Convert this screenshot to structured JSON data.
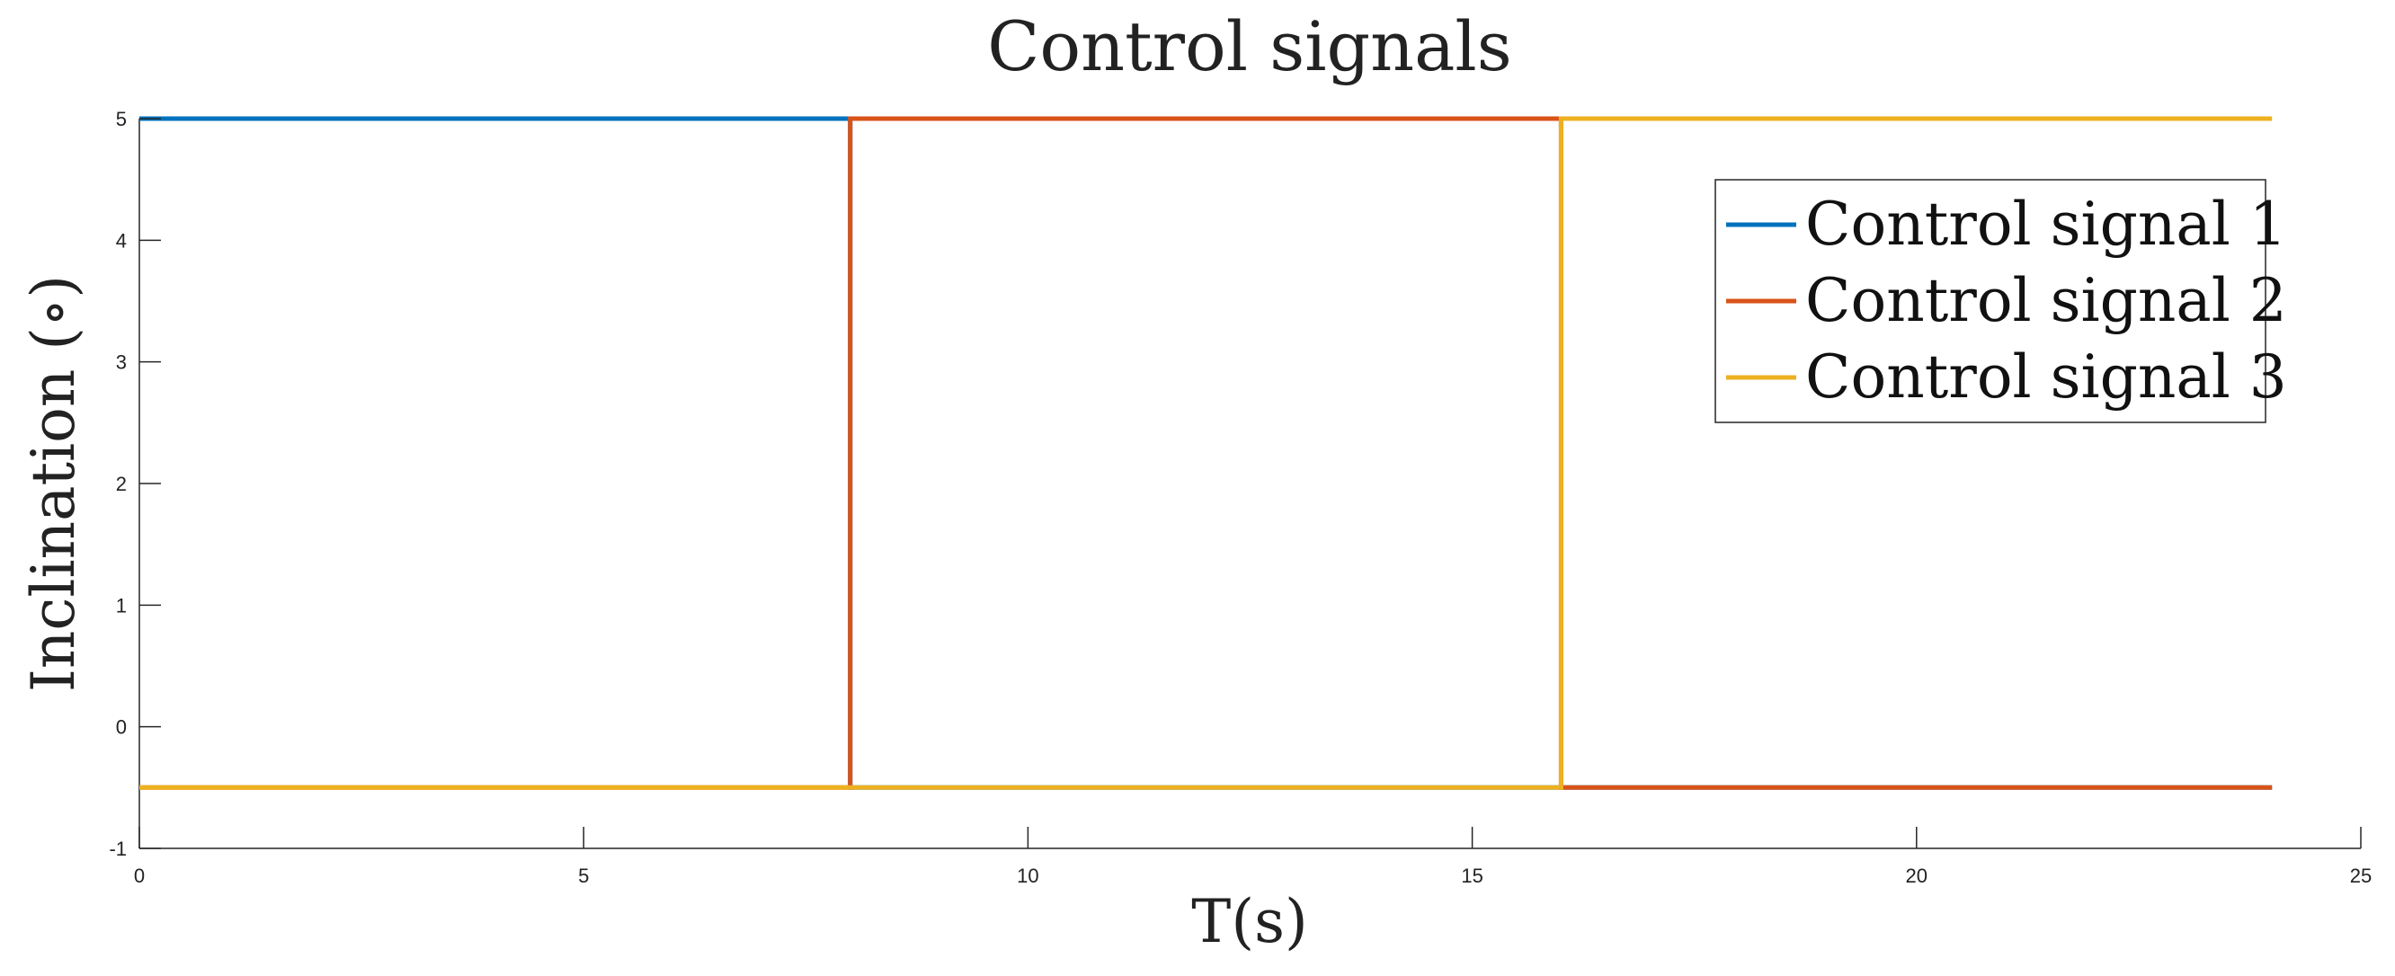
{
  "chart_data": {
    "type": "line",
    "title": "Control signals",
    "xlabel": "T(s)",
    "ylabel": "Inclination (∘)",
    "xlim": [
      0,
      25
    ],
    "ylim": [
      -1,
      5
    ],
    "xticks": [
      0,
      5,
      10,
      15,
      20,
      25
    ],
    "yticks": [
      -1,
      0,
      1,
      2,
      3,
      4,
      5
    ],
    "grid": false,
    "legend_position": "top-right",
    "series": [
      {
        "name": "Control signal 1",
        "color": "#0072BD",
        "x": [
          0,
          8,
          8,
          24
        ],
        "y": [
          5,
          5,
          -0.5,
          -0.5
        ]
      },
      {
        "name": "Control signal 2",
        "color": "#D95319",
        "x": [
          0,
          8,
          8,
          16,
          16,
          24
        ],
        "y": [
          -0.5,
          -0.5,
          5,
          5,
          -0.5,
          -0.5
        ]
      },
      {
        "name": "Control signal 3",
        "color": "#EDB120",
        "x": [
          0,
          16,
          16,
          24
        ],
        "y": [
          -0.5,
          -0.5,
          5,
          5
        ]
      }
    ]
  }
}
